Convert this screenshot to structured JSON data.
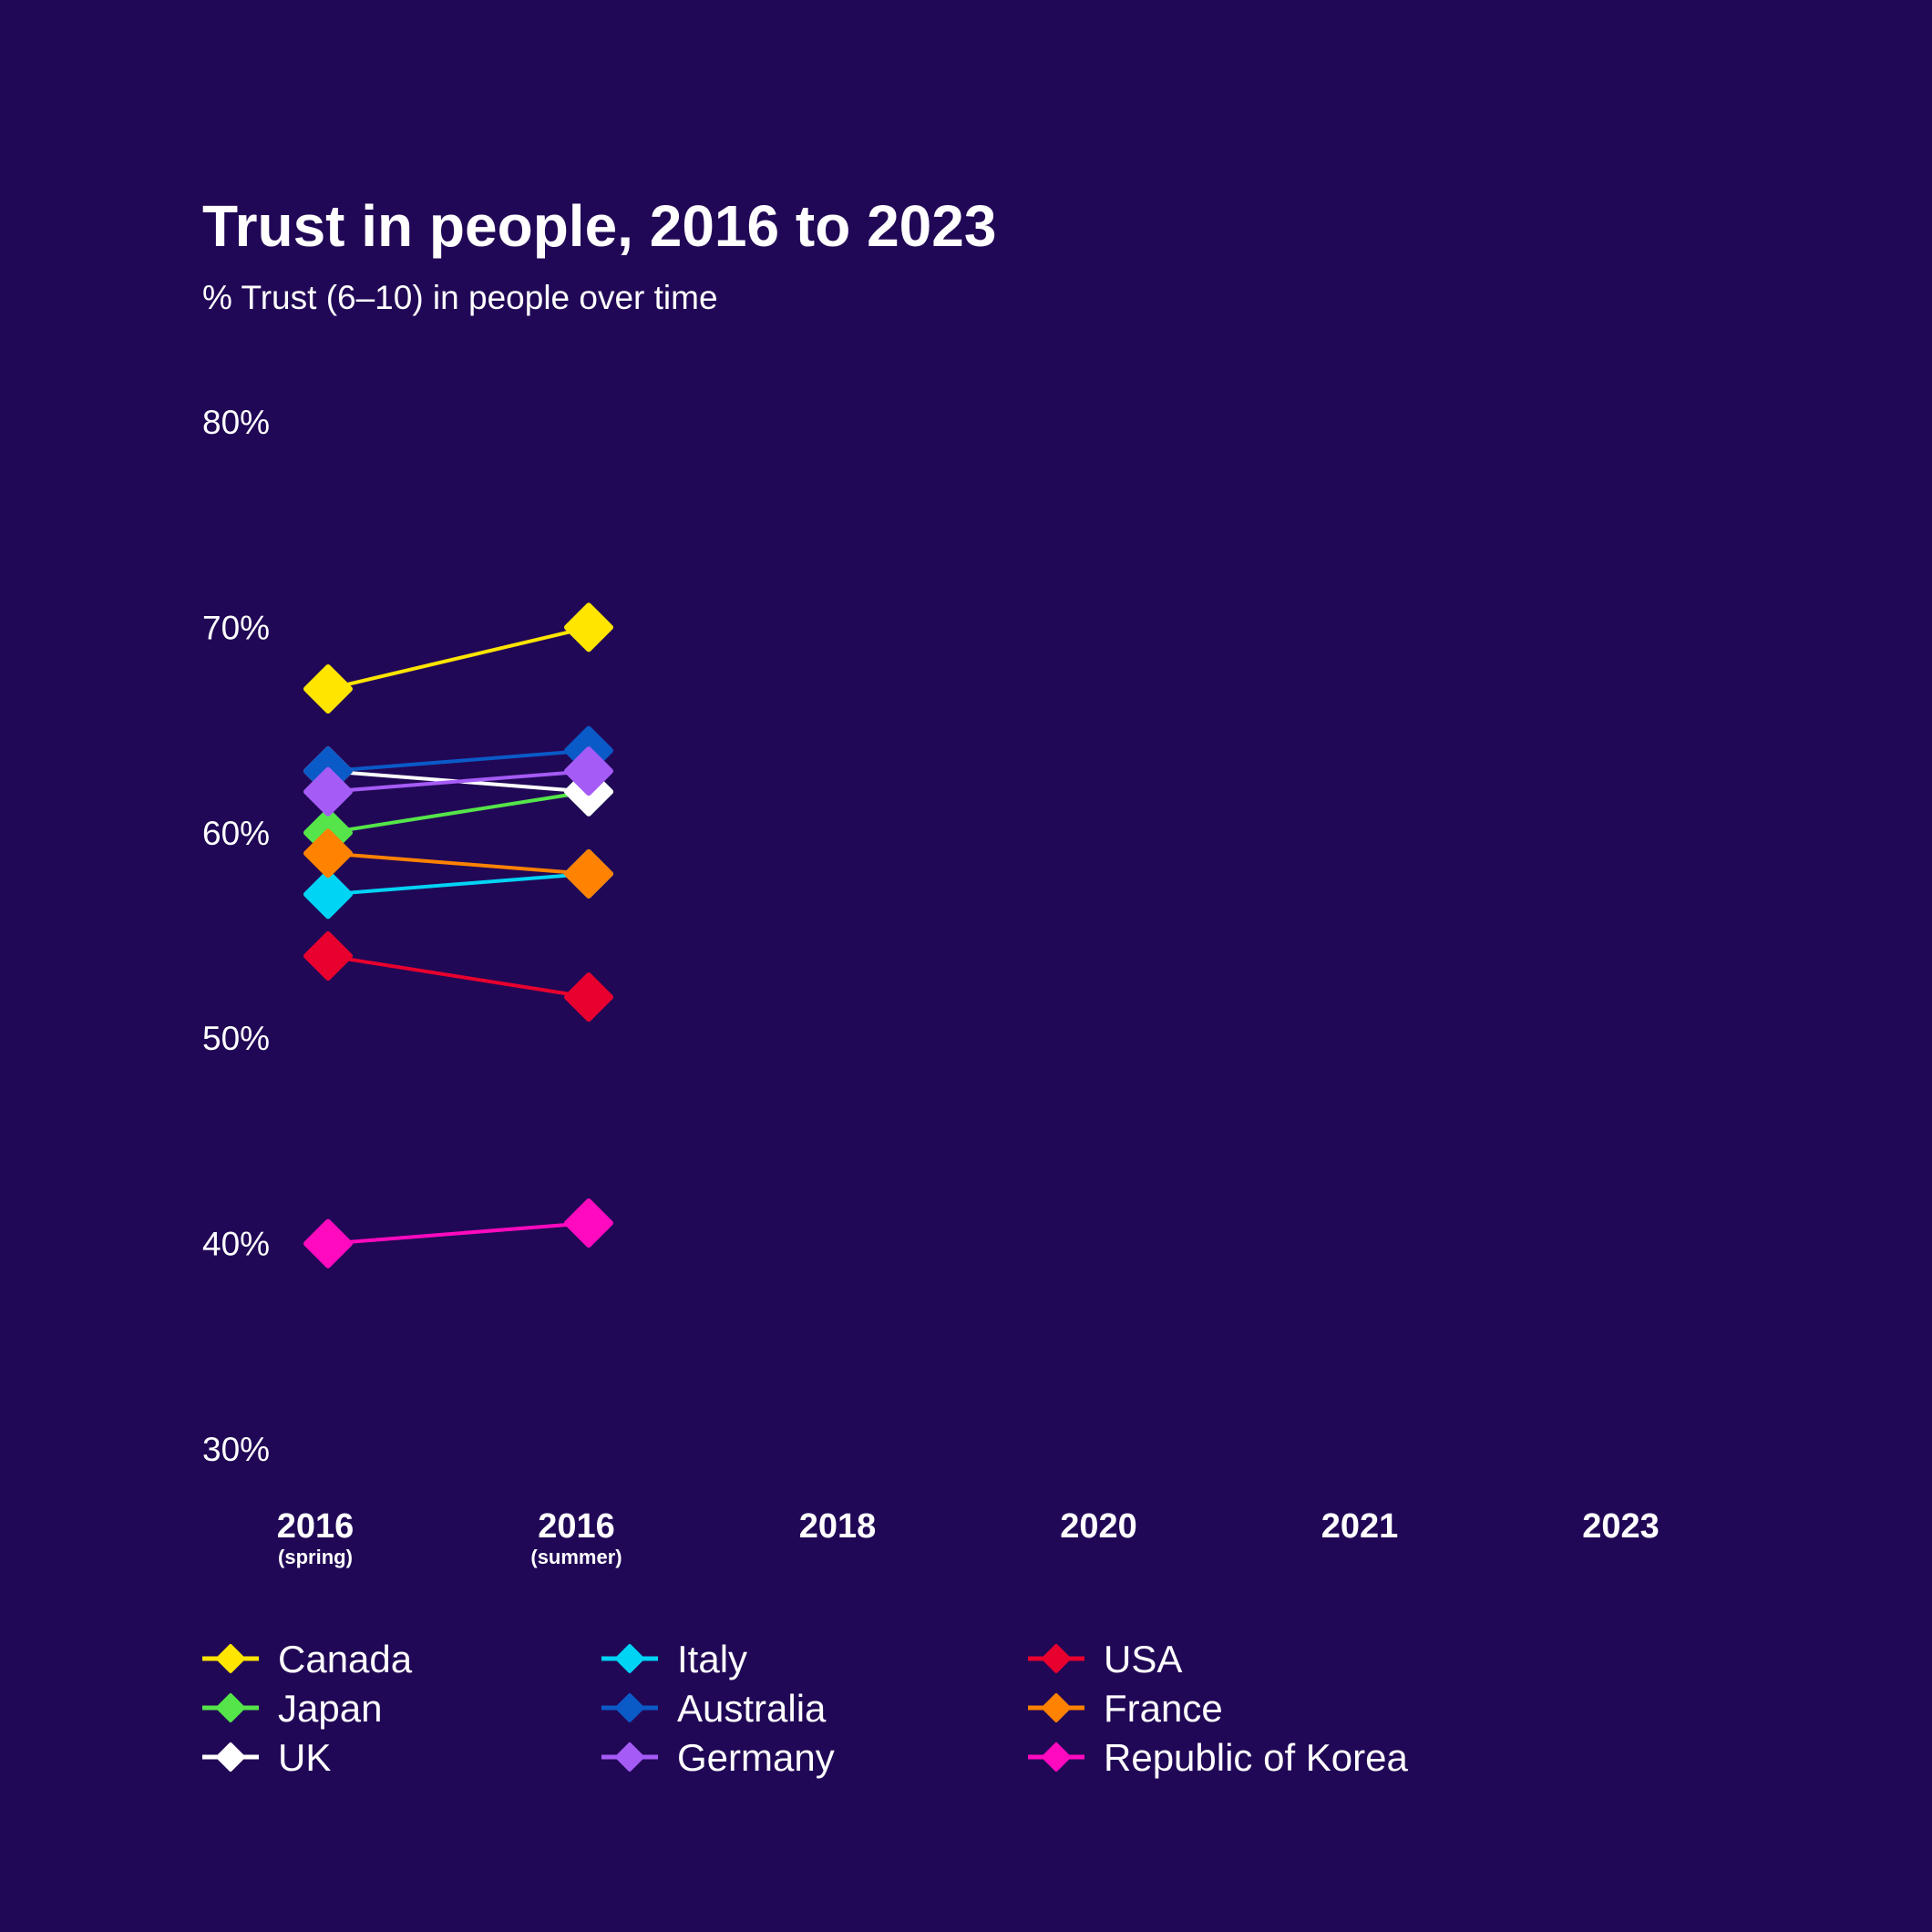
{
  "chart_data": {
    "type": "line",
    "title": "Trust in people, 2016 to 2023",
    "subtitle": "% Trust (6–10) in people over time",
    "x_categories": [
      {
        "label": "2016",
        "sub": "(spring)"
      },
      {
        "label": "2016",
        "sub": "(summer)"
      },
      {
        "label": "2018",
        "sub": ""
      },
      {
        "label": "2020",
        "sub": ""
      },
      {
        "label": "2021",
        "sub": ""
      },
      {
        "label": "2023",
        "sub": ""
      }
    ],
    "y_ticks": [
      "80%",
      "70%",
      "60%",
      "50%",
      "40%",
      "30%"
    ],
    "ylim": [
      30,
      80
    ],
    "grid": false,
    "legend_position": "bottom",
    "series": [
      {
        "name": "Canada",
        "color": "#FFE500",
        "values": [
          67,
          70,
          null,
          null,
          null,
          null
        ]
      },
      {
        "name": "Japan",
        "color": "#55E54A",
        "values": [
          60,
          62,
          null,
          null,
          null,
          null
        ]
      },
      {
        "name": "UK",
        "color": "#FFFFFF",
        "values": [
          63,
          62,
          null,
          null,
          null,
          null
        ]
      },
      {
        "name": "Italy",
        "color": "#00D4F5",
        "values": [
          57,
          58,
          null,
          null,
          null,
          null
        ]
      },
      {
        "name": "Australia",
        "color": "#0A5AC8",
        "values": [
          63,
          64,
          null,
          null,
          null,
          null
        ]
      },
      {
        "name": "Germany",
        "color": "#A55BF5",
        "values": [
          62,
          63,
          null,
          null,
          null,
          null
        ]
      },
      {
        "name": "USA",
        "color": "#E8002E",
        "values": [
          54,
          52,
          null,
          null,
          null,
          null
        ]
      },
      {
        "name": "France",
        "color": "#FF8200",
        "values": [
          59,
          58,
          null,
          null,
          null,
          null
        ]
      },
      {
        "name": "Republic of Korea",
        "color": "#FF0ABE",
        "values": [
          40,
          41,
          null,
          null,
          null,
          null
        ]
      }
    ]
  },
  "theme": {
    "background": "#210856",
    "text": "#FFFFFF"
  }
}
